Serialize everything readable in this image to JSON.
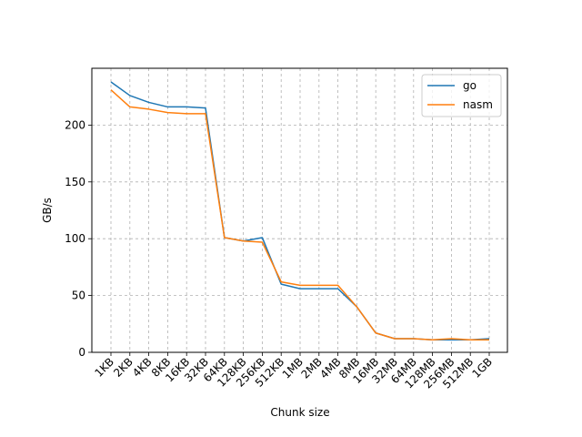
{
  "chart_data": {
    "type": "line",
    "xlabel": "Chunk size",
    "ylabel": "GB/s",
    "categories": [
      "1KB",
      "2KB",
      "4KB",
      "8KB",
      "16KB",
      "32KB",
      "64KB",
      "128KB",
      "256KB",
      "512KB",
      "1MB",
      "2MB",
      "4MB",
      "8MB",
      "16MB",
      "32MB",
      "64MB",
      "128MB",
      "256MB",
      "512MB",
      "1GB"
    ],
    "yticks": [
      0,
      50,
      100,
      150,
      200
    ],
    "ylim": [
      0,
      250
    ],
    "grid": true,
    "legend_position": "upper right",
    "series": [
      {
        "name": "go",
        "color": "#1f77b4",
        "values": [
          238,
          226,
          220,
          216,
          216,
          215,
          101,
          98,
          101,
          60,
          56,
          56,
          56,
          40,
          17,
          12,
          12,
          11,
          11,
          11,
          12
        ]
      },
      {
        "name": "nasm",
        "color": "#ff7f0e",
        "values": [
          231,
          216,
          214,
          211,
          210,
          210,
          101,
          98,
          97,
          62,
          59,
          59,
          59,
          40,
          17,
          12,
          12,
          11,
          12,
          11,
          11
        ]
      }
    ]
  }
}
